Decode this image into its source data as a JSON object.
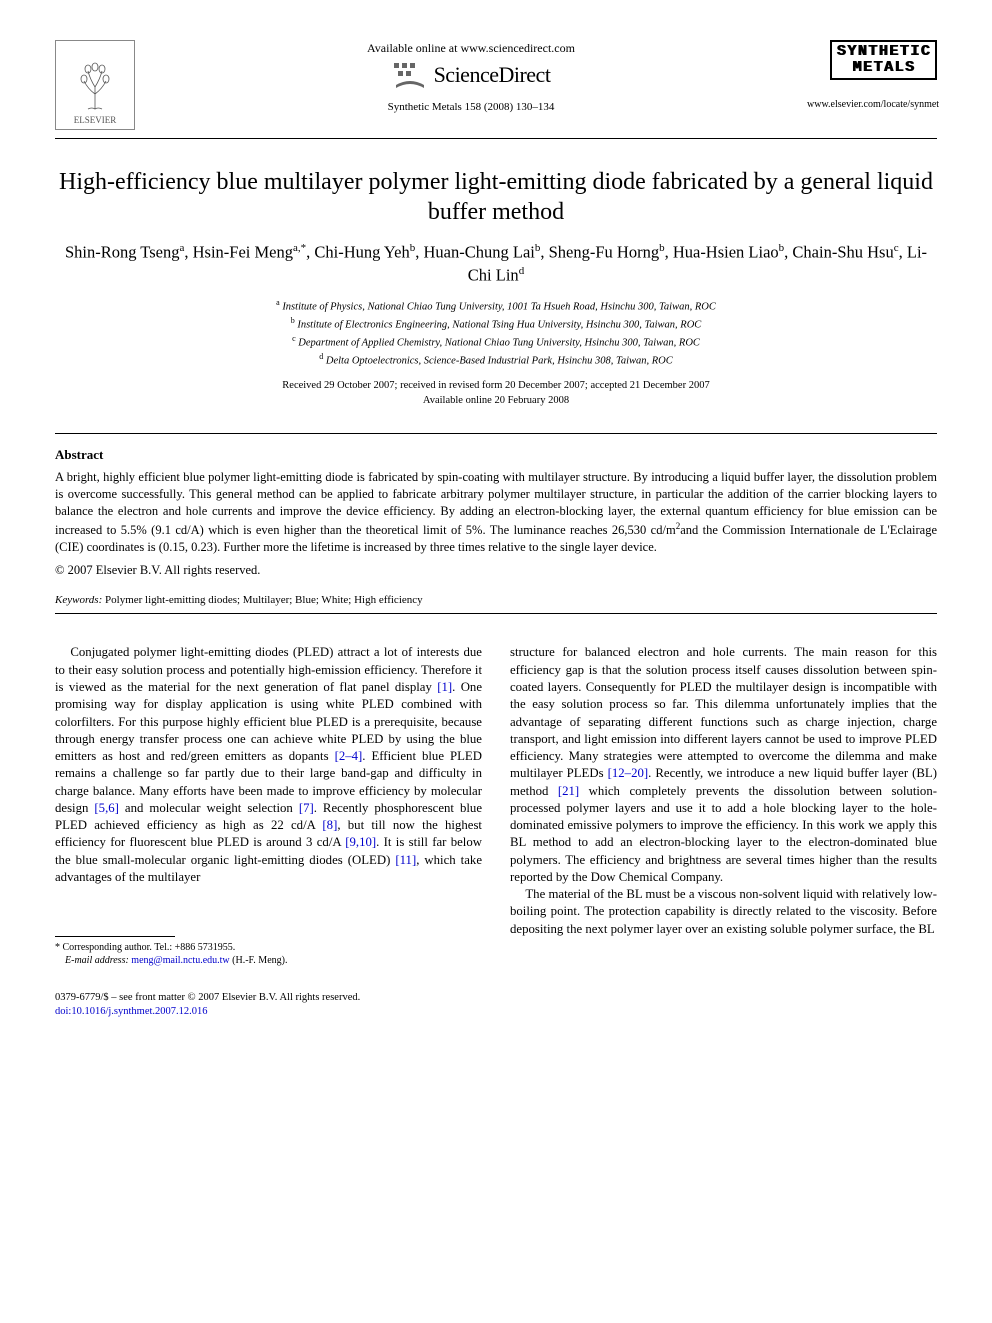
{
  "header": {
    "elsevier_name": "ELSEVIER",
    "avail_text": "Available online at www.sciencedirect.com",
    "scidirect_text": "ScienceDirect",
    "journal_ref": "Synthetic Metals 158 (2008) 130–134",
    "journal_logo_line1": "SYNTHETIC",
    "journal_logo_line2": "METALS",
    "journal_url": "www.elsevier.com/locate/synmet"
  },
  "title": "High-efficiency blue multilayer polymer light-emitting diode fabricated by a general liquid buffer method",
  "authors_html": "Shin-Rong Tseng<sup>a</sup>, Hsin-Fei Meng<sup>a,*</sup>, Chi-Hung Yeh<sup>b</sup>, Huan-Chung Lai<sup>b</sup>, Sheng-Fu Horng<sup>b</sup>, Hua-Hsien Liao<sup>b</sup>, Chain-Shu Hsu<sup>c</sup>, Li-Chi Lin<sup>d</sup>",
  "affiliations": [
    {
      "sup": "a",
      "text": "Institute of Physics, National Chiao Tung University, 1001 Ta Hsueh Road, Hsinchu 300, Taiwan, ROC"
    },
    {
      "sup": "b",
      "text": "Institute of Electronics Engineering, National Tsing Hua University, Hsinchu 300, Taiwan, ROC"
    },
    {
      "sup": "c",
      "text": "Department of Applied Chemistry, National Chiao Tung University, Hsinchu 300, Taiwan, ROC"
    },
    {
      "sup": "d",
      "text": "Delta Optoelectronics, Science-Based Industrial Park, Hsinchu 308, Taiwan, ROC"
    }
  ],
  "dates_line1": "Received 29 October 2007; received in revised form 20 December 2007; accepted 21 December 2007",
  "dates_line2": "Available online 20 February 2008",
  "abstract": {
    "heading": "Abstract",
    "body": "A bright, highly efficient blue polymer light-emitting diode is fabricated by spin-coating with multilayer structure. By introducing a liquid buffer layer, the dissolution problem is overcome successfully. This general method can be applied to fabricate arbitrary polymer multilayer structure, in particular the addition of the carrier blocking layers to balance the electron and hole currents and improve the device efficiency. By adding an electron-blocking layer, the external quantum efficiency for blue emission can be increased to 5.5% (9.1 cd/A) which is even higher than the theoretical limit of 5%. The luminance reaches 26,530 cd/m<sup>2</sup>and the Commission Internationale de L'Eclairage (CIE) coordinates is (0.15, 0.23). Further more the lifetime is increased by three times relative to the single layer device.",
    "copyright": "© 2007 Elsevier B.V. All rights reserved."
  },
  "keywords": {
    "label": "Keywords:",
    "text": "Polymer light-emitting diodes; Multilayer; Blue; White; High efficiency"
  },
  "body": {
    "para1": "Conjugated polymer light-emitting diodes (PLED) attract a lot of interests due to their easy solution process and potentially high-emission efficiency. Therefore it is viewed as the material for the next generation of flat panel display <span class=\"ref\">[1]</span>. One promising way for display application is using white PLED combined with colorfilters. For this purpose highly efficient blue PLED is a prerequisite, because through energy transfer process one can achieve white PLED by using the blue emitters as host and red/green emitters as dopants <span class=\"ref\">[2–4]</span>. Efficient blue PLED remains a challenge so far partly due to their large band-gap and difficulty in charge balance. Many efforts have been made to improve efficiency by molecular design <span class=\"ref\">[5,6]</span> and molecular weight selection <span class=\"ref\">[7]</span>. Recently phosphorescent blue PLED achieved efficiency as high as 22 cd/A <span class=\"ref\">[8]</span>, but till now the highest efficiency for fluorescent blue PLED is around 3 cd/A <span class=\"ref\">[9,10]</span>. It is still far below the blue small-molecular organic light-emitting diodes (OLED) <span class=\"ref\">[11]</span>, which take advantages of the multilayer  ",
    "para1b": "structure for balanced electron and hole currents. The main reason for this efficiency gap is that the solution process itself causes dissolution between spin-coated layers. Consequently for PLED the multilayer design is incompatible with the easy solution process so far. This dilemma unfortunately implies that the advantage of separating different functions such as charge injection, charge transport, and light emission into different layers cannot be used to improve PLED efficiency. Many strategies were attempted to overcome the dilemma and make multilayer PLEDs <span class=\"ref\">[12–20]</span>. Recently, we introduce a new liquid buffer layer (BL) method <span class=\"ref\">[21]</span> which completely prevents the dissolution between solution-processed polymer layers and use it to add a hole blocking layer to the hole-dominated emissive polymers to improve the efficiency. In this work we apply this BL method to add an electron-blocking layer to the electron-dominated blue polymers. The efficiency and brightness are several times higher than the results reported by the Dow Chemical Company.",
    "para2": "The material of the BL must be a viscous non-solvent liquid with relatively low-boiling point. The protection capability is directly related to the viscosity. Before depositing the next polymer layer over an existing soluble polymer surface, the BL"
  },
  "footnote": {
    "corr": "* Corresponding author. Tel.: +886 5731955.",
    "email_label": "E-mail address:",
    "email": "meng@mail.nctu.edu.tw",
    "email_tail": "(H.-F. Meng)."
  },
  "footer": {
    "line1": "0379-6779/$ – see front matter © 2007 Elsevier B.V. All rights reserved.",
    "doi": "doi:10.1016/j.synthmet.2007.12.016"
  },
  "colors": {
    "link": "#0000cc",
    "text": "#000000",
    "bg": "#ffffff"
  }
}
